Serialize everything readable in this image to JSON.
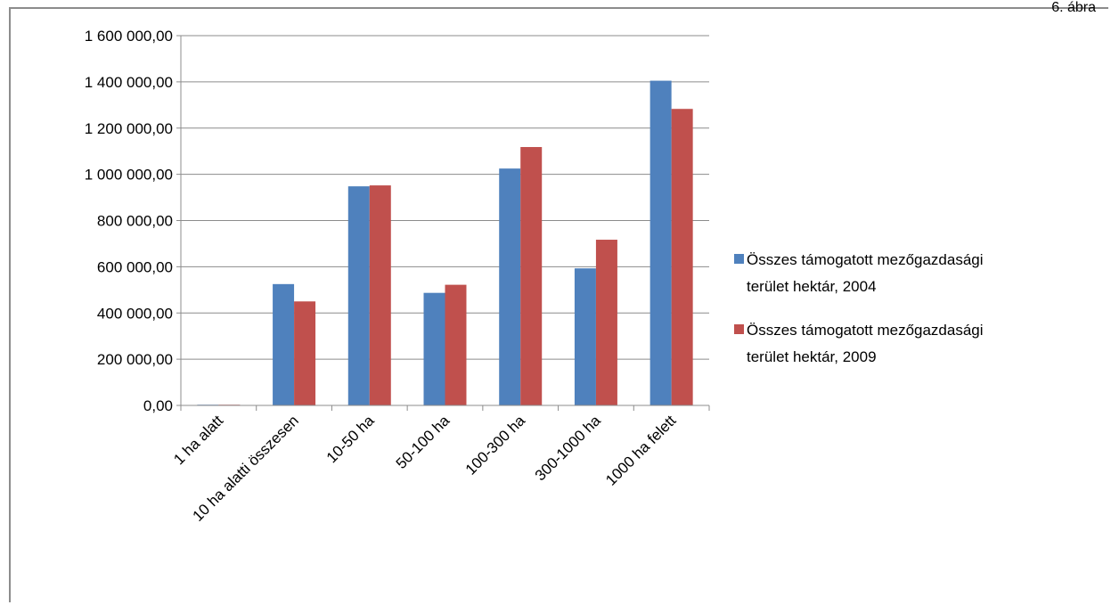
{
  "figure_label": "6. ábra",
  "chart_data": {
    "type": "bar",
    "title": "",
    "xlabel": "",
    "ylabel": "",
    "categories": [
      "1 ha alatt",
      "10 ha alatti összesen",
      "10-50 ha",
      "50-100 ha",
      "100-300 ha",
      "300-1000 ha",
      "1000 ha felett"
    ],
    "series": [
      {
        "name_lines": [
          "Összes támogatott mezőgazdasági",
          "terület hektár, 2004"
        ],
        "color": "#4f81bd",
        "values": [
          3000,
          525000,
          948000,
          487000,
          1025000,
          593000,
          1405000
        ]
      },
      {
        "name_lines": [
          "Összes támogatott mezőgazdasági",
          "terület hektár, 2009"
        ],
        "color": "#c0504d",
        "values": [
          3000,
          450000,
          952000,
          522000,
          1118000,
          717000,
          1283000
        ]
      }
    ],
    "ylim": [
      0,
      1600000
    ],
    "yticks": [
      0,
      200000,
      400000,
      600000,
      800000,
      1000000,
      1200000,
      1400000,
      1600000
    ],
    "ytick_labels": [
      "0,00",
      "200 000,00",
      "400 000,00",
      "600 000,00",
      "800 000,00",
      "1 000 000,00",
      "1 200 000,00",
      "1 400 000,00",
      "1 600 000,00"
    ],
    "grid": true,
    "legend_position": "right"
  }
}
